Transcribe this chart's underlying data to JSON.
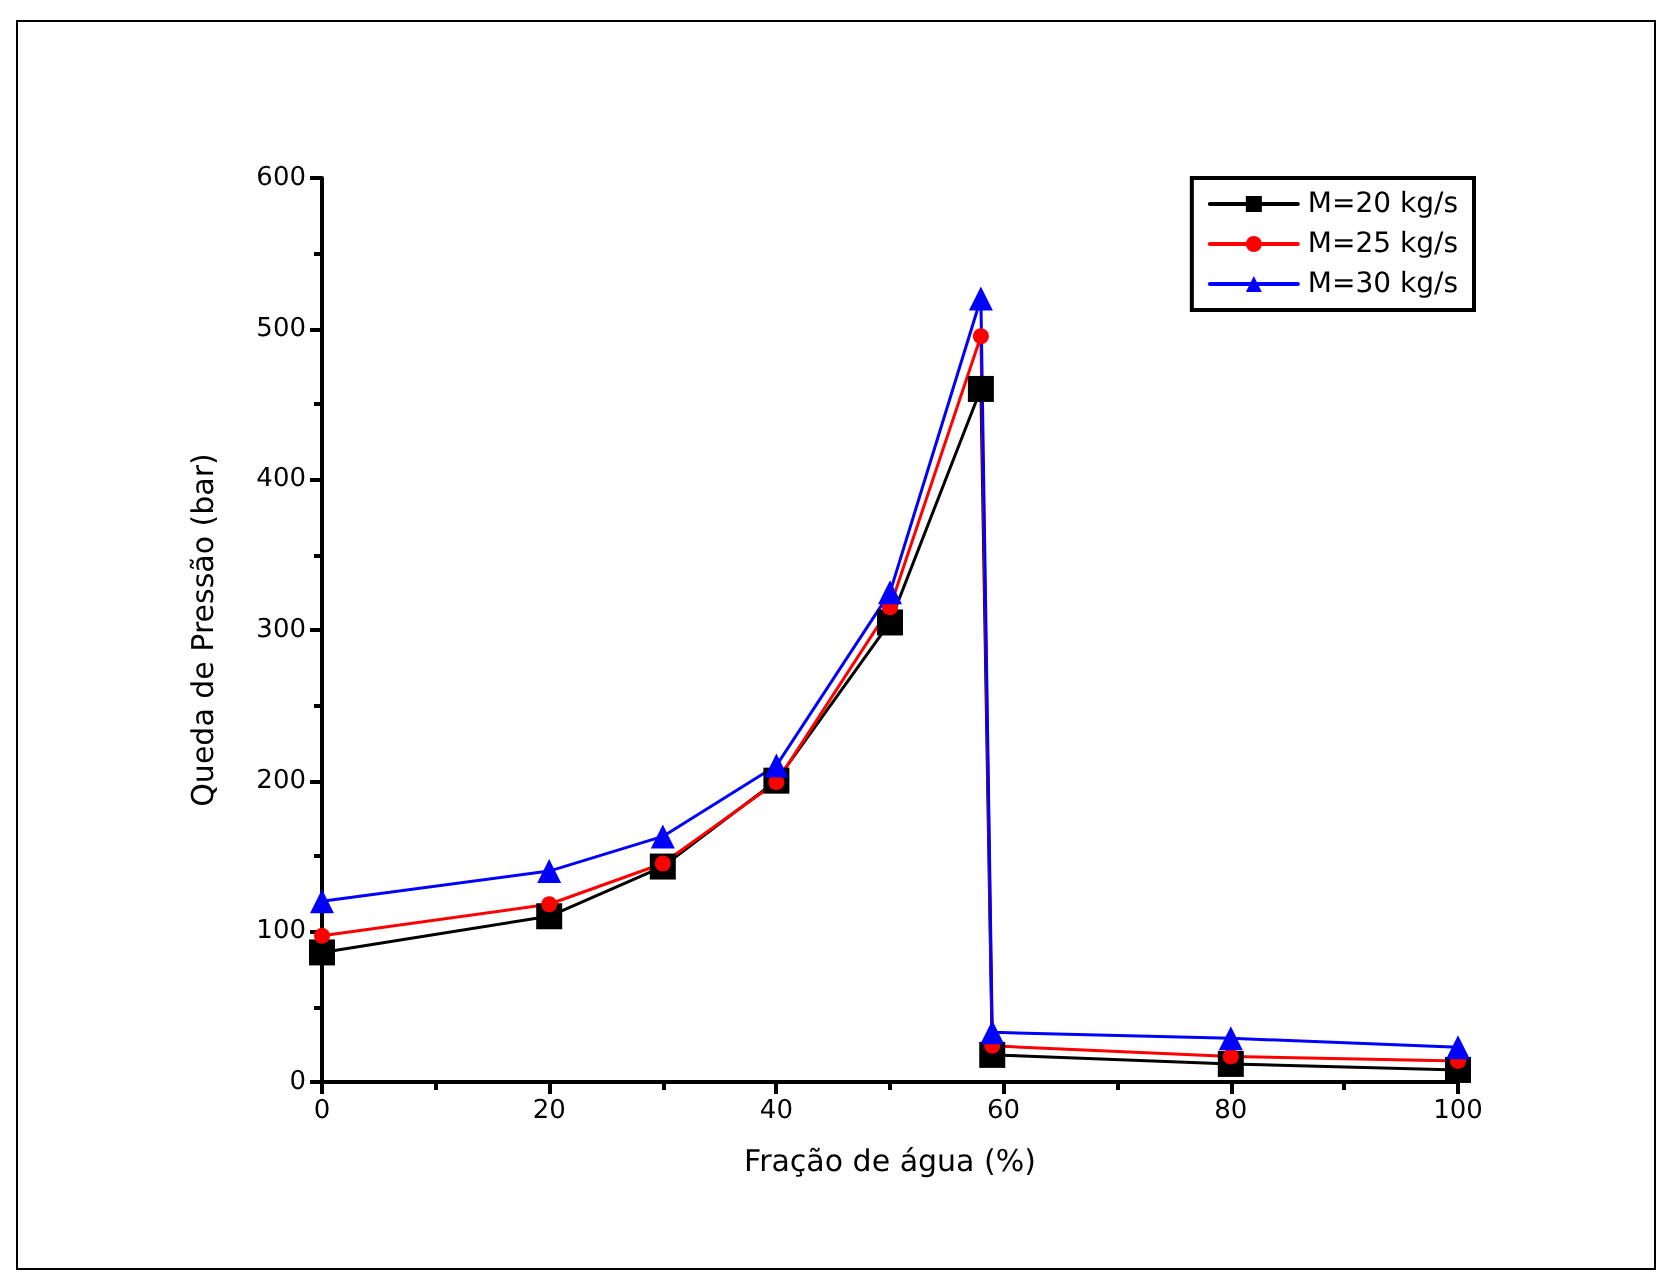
{
  "chart_data": {
    "type": "line",
    "xlabel": "Fração de água (%)",
    "ylabel": "Queda de Pressão (bar)",
    "xlim": [
      0,
      100
    ],
    "xticks": [
      0,
      20,
      40,
      60,
      80,
      100
    ],
    "ylim": [
      0,
      600
    ],
    "yticks": [
      0,
      100,
      200,
      300,
      400,
      500,
      600
    ],
    "grid": false,
    "legend": "top right",
    "line_style": "solid",
    "series": [
      {
        "name": "M=20 kg/s",
        "color": "#000000",
        "marker": "square",
        "x": [
          0,
          20,
          30,
          40,
          50,
          58,
          59,
          80,
          100
        ],
        "values": [
          86,
          110,
          143,
          200,
          305,
          460,
          18,
          12,
          8
        ]
      },
      {
        "name": "M=25 kg/s",
        "color": "#ff0000",
        "marker": "circle",
        "x": [
          0,
          20,
          30,
          40,
          50,
          58,
          59,
          80,
          100
        ],
        "values": [
          97,
          118,
          145,
          199,
          315,
          495,
          24,
          17,
          14
        ]
      },
      {
        "name": "M=30 kg/s",
        "color": "#0000ff",
        "marker": "triangle",
        "x": [
          0,
          20,
          30,
          40,
          50,
          58,
          59,
          80,
          100
        ],
        "values": [
          120,
          140,
          163,
          210,
          325,
          520,
          33,
          29,
          23
        ]
      }
    ]
  }
}
